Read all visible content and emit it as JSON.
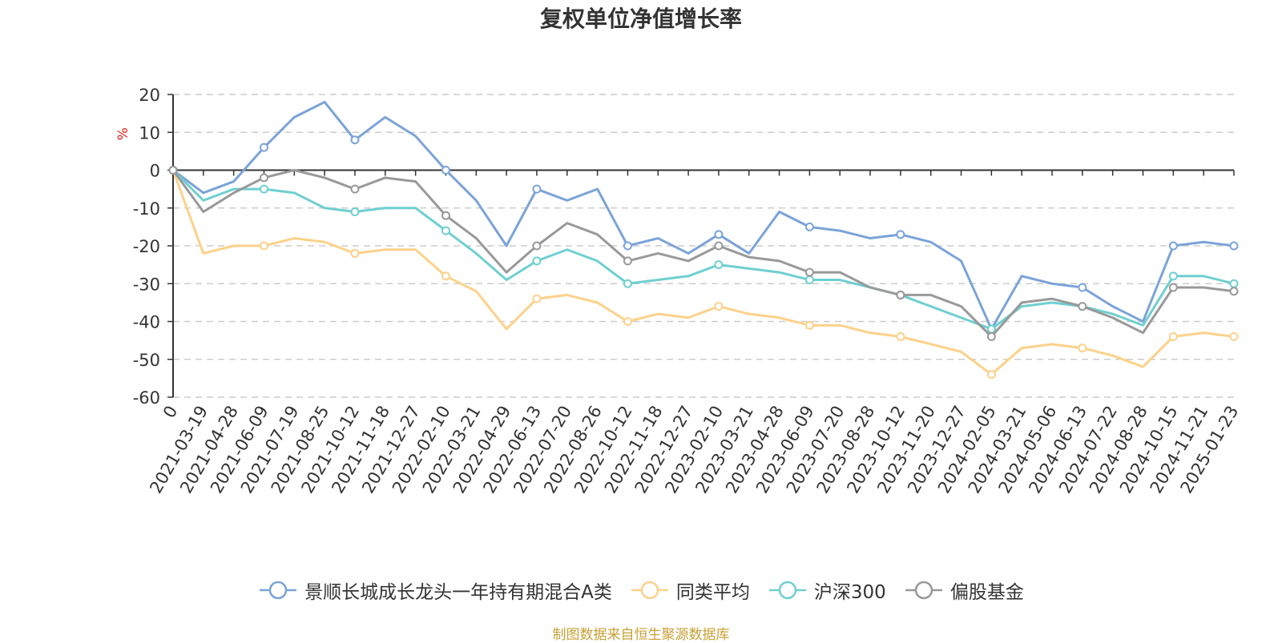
{
  "chart_data": {
    "type": "line",
    "title": "复权单位净值增长率",
    "ylabel": "%",
    "xlabel": "",
    "ylim": [
      -60,
      20
    ],
    "yticks": [
      20,
      10,
      0,
      -10,
      -20,
      -30,
      -40,
      -50,
      -60
    ],
    "grid": true,
    "legend_position": "bottom",
    "x_tick_labels": [
      "0",
      "2021-03-19",
      "2021-04-28",
      "2021-06-09",
      "2021-07-19",
      "2021-08-25",
      "2021-10-12",
      "2021-11-18",
      "2021-12-27",
      "2022-02-10",
      "2022-03-21",
      "2022-04-29",
      "2022-06-13",
      "2022-07-20",
      "2022-08-26",
      "2022-10-12",
      "2022-11-18",
      "2022-12-27",
      "2023-02-10",
      "2023-03-21",
      "2023-04-28",
      "2023-06-09",
      "2023-07-20",
      "2023-08-28",
      "2023-10-12",
      "2023-11-20",
      "2023-12-27",
      "2024-02-05",
      "2024-03-21",
      "2024-05-06",
      "2024-06-13",
      "2024-07-22",
      "2024-08-28",
      "2024-10-15",
      "2024-11-21",
      "2025-01-23"
    ],
    "series": [
      {
        "name": "景顺长城成长龙头一年持有期混合A类",
        "color": "#7ba3d8",
        "values": [
          0,
          -6,
          -3,
          6,
          14,
          18,
          8,
          14,
          9,
          0,
          -8,
          -20,
          -5,
          -8,
          -5,
          -20,
          -18,
          -22,
          -17,
          -22,
          -11,
          -15,
          -16,
          -18,
          -17,
          -19,
          -24,
          -42,
          -28,
          -30,
          -31,
          -36,
          -40,
          -20,
          -19,
          -20
        ]
      },
      {
        "name": "同类平均",
        "color": "#fdd18a",
        "values": [
          0,
          -22,
          -20,
          -20,
          -18,
          -19,
          -22,
          -21,
          -21,
          -28,
          -32,
          -42,
          -34,
          -33,
          -35,
          -40,
          -38,
          -39,
          -36,
          -38,
          -39,
          -41,
          -41,
          -43,
          -44,
          -46,
          -48,
          -54,
          -47,
          -46,
          -47,
          -49,
          -52,
          -44,
          -43,
          -44
        ]
      },
      {
        "name": "沪深300",
        "color": "#6fcfd0",
        "values": [
          0,
          -8,
          -5,
          -5,
          -6,
          -10,
          -11,
          -10,
          -10,
          -16,
          -22,
          -29,
          -24,
          -21,
          -24,
          -30,
          -29,
          -28,
          -25,
          -26,
          -27,
          -29,
          -29,
          -31,
          -33,
          -36,
          -39,
          -42,
          -36,
          -35,
          -36,
          -38,
          -41,
          -28,
          -28,
          -30
        ]
      },
      {
        "name": "偏股基金",
        "color": "#999999",
        "values": [
          0,
          -11,
          -6,
          -2,
          0,
          -2,
          -5,
          -2,
          -3,
          -12,
          -18,
          -27,
          -20,
          -14,
          -17,
          -24,
          -22,
          -24,
          -20,
          -23,
          -24,
          -27,
          -27,
          -31,
          -33,
          -33,
          -36,
          -44,
          -35,
          -34,
          -36,
          -39,
          -43,
          -31,
          -31,
          -32
        ]
      }
    ]
  },
  "source_text": "制图数据来自恒生聚源数据库"
}
